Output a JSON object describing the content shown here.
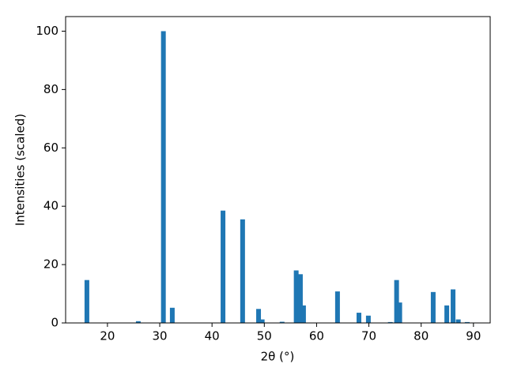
{
  "chart_data": {
    "type": "bar",
    "xlabel": "2θ (°)",
    "ylabel": "Intensities (scaled)",
    "x": [
      16.07,
      25.9,
      30.7,
      32.4,
      42.1,
      45.85,
      48.9,
      49.6,
      53.4,
      56.1,
      56.9,
      57.5,
      64.0,
      68.1,
      69.9,
      74.1,
      75.3,
      75.9,
      82.3,
      84.9,
      86.1,
      87.1,
      88.8
    ],
    "values": [
      14.7,
      0.6,
      100,
      5.2,
      38.5,
      35.5,
      4.8,
      1.2,
      0.4,
      18,
      16.7,
      6,
      10.8,
      3.5,
      2.5,
      0.3,
      14.7,
      7,
      10.6,
      6,
      11.5,
      1.2,
      0.3
    ],
    "color": "#1f77b4",
    "xlim": [
      12,
      93.2
    ],
    "ylim": [
      0,
      105
    ],
    "xticks": [
      20,
      30,
      40,
      50,
      60,
      70,
      80,
      90
    ],
    "yticks": [
      0,
      20,
      40,
      60,
      80,
      100
    ]
  }
}
